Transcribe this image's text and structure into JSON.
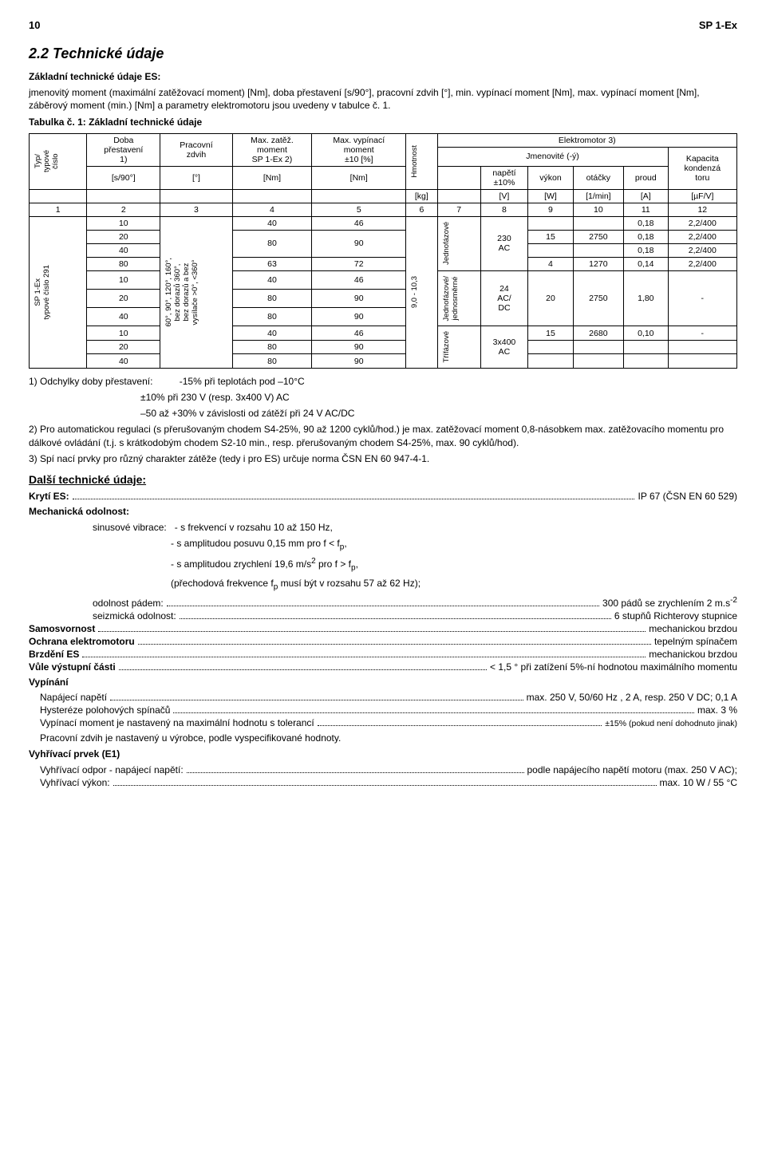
{
  "header": {
    "page_left": "10",
    "page_right": "SP 1-Ex"
  },
  "section": {
    "num_title": "2.2 Technické údaje",
    "subheading": "Základní technické údaje ES:",
    "intro": "jmenovitý moment (maximální zatěžovací moment) [Nm], doba přestavení [s/90°], pracovní zdvih [°], min. vypínací moment [Nm], max. vypínací moment [Nm], záběrový moment (min.) [Nm] a parametry elektromotoru jsou uvedeny v tabulce č. 1.",
    "table_caption": "Tabulka č. 1:  Základní technické údaje"
  },
  "table": {
    "head": {
      "typ": "Typ/\ntypové\nčíslo",
      "doba": "Doba\npřestavení",
      "doba_note": "1)",
      "prac": "Pracovní\nzdvih",
      "maxz": "Max. zatěž.\nmoment\nSP 1-Ex",
      "maxz_note": "2)",
      "maxv": "Max. vypínací\nmoment\n±10 [%]",
      "hmot": "Hmotnost",
      "elektro": "Elektromotor",
      "elektro_note": "3)",
      "jmen": "Jmenovité (-ý)",
      "napeti": "napětí\n±10%",
      "vykon": "výkon",
      "otacky": "otáčky",
      "proud": "proud",
      "kapac": "Kapacita\nkondenzá\ntoru"
    },
    "units": {
      "u1": "[s/90°]",
      "u2": "[°]",
      "u3": "[Nm]",
      "u4": "[Nm]",
      "u5": "[kg]",
      "u6": "[V]",
      "u7": "[W]",
      "u8": "[1/min]",
      "u9": "[A]",
      "u10": "[µF/V]"
    },
    "colnums": [
      "1",
      "2",
      "3",
      "4",
      "5",
      "6",
      "7",
      "8",
      "9",
      "10",
      "11",
      "12"
    ],
    "left_block": {
      "model": "SP 1-Ex\ntypové číslo 291",
      "zdvih": "60°, 90°, 120°, 160°,\nbez dorazů 360°,\nbez dorazů a bez\nvysílače >0°, <360°"
    },
    "mass": "9,0 - 10,3",
    "phase": {
      "jedno": "Jednofázové",
      "jedno_dc": "Jednofázové/\njednosměrné",
      "tri": "Třífázové"
    },
    "volt": {
      "v230": "230\nAC",
      "v24": "24\nAC/\nDC",
      "v3400": "3x400\nAC"
    },
    "rows": [
      {
        "d": "10",
        "mz": "40",
        "mv": "46",
        "w": "",
        "r": "",
        "a": "0,18",
        "c": "2,2/400"
      },
      {
        "d": "20",
        "mz": "80",
        "mv": "90",
        "w": "15",
        "r": "2750",
        "a": "0,18",
        "c": "2,2/400"
      },
      {
        "d": "40",
        "mz": "",
        "mv": "",
        "w": "",
        "r": "",
        "a": "0,18",
        "c": "2,2/400"
      },
      {
        "d": "80",
        "mz": "63",
        "mv": "72",
        "w": "4",
        "r": "1270",
        "a": "0,14",
        "c": "2,2/400"
      },
      {
        "d": "10",
        "mz": "40",
        "mv": "46",
        "w": "",
        "r": "",
        "a": "",
        "c": ""
      },
      {
        "d": "20",
        "mz": "80",
        "mv": "90",
        "w": "20",
        "r": "2750",
        "a": "1,80",
        "c": "-"
      },
      {
        "d": "40",
        "mz": "80",
        "mv": "90",
        "w": "",
        "r": "",
        "a": "",
        "c": ""
      },
      {
        "d": "10",
        "mz": "40",
        "mv": "46",
        "w": "15",
        "r": "2680",
        "a": "0,10",
        "c": "-"
      },
      {
        "d": "20",
        "mz": "80",
        "mv": "90",
        "w": "",
        "r": "",
        "a": "",
        "c": ""
      },
      {
        "d": "40",
        "mz": "80",
        "mv": "90",
        "w": "",
        "r": "",
        "a": "",
        "c": ""
      }
    ]
  },
  "notes": {
    "n1a": "1) Odchylky doby přestavení:",
    "n1b": "-15% při teplotách pod –10°C",
    "n1c": "±10% při 230 V (resp. 3x400 V) AC",
    "n1d": "–50 až +30% v závislosti od zátěží  při 24 V AC/DC",
    "n2": "2) Pro automatickou regulaci (s přerušovaným chodem S4-25%, 90 až 1200 cyklů/hod.) je max. zatěžovací moment  0,8-násobkem max. zatěžovacího momentu pro dálkové ovládání (t.j. s krátkodobým chodem  S2-10 min., resp. přerušovaným chodem S4-25%, max. 90 cyklů/hod).",
    "n3": "3) Spí nací prvky pro různý charakter zátěže (tedy i pro ES) určuje norma ČSN EN 60 947-4-1."
  },
  "further": {
    "title": "Další technické údaje:",
    "kryti_l": "Krytí ES:",
    "kryti_v": "IP 67  (ČSN EN 60 529)",
    "mech_title": "Mechanická odolnost:",
    "sinus_l": "sinusové vibrace:",
    "sinus_a": "- s frekvencí v rozsahu 10 až 150 Hz,",
    "sinus_b": "- s amplitudou posuvu 0,15 mm pro f < f",
    "sinus_b_sub": "p",
    "sinus_b_end": ",",
    "sinus_c": "- s amplitudou zrychlení 19,6 m/s",
    "sinus_c_sup": "2",
    "sinus_c_mid": " pro f > f",
    "sinus_c_sub": "p",
    "sinus_c_end": ",",
    "sinus_d_a": "(přechodová frekvence f",
    "sinus_d_sub": "p",
    "sinus_d_b": " musí být v rozsahu 57 až 62 Hz);",
    "pad_l": "odolnost pádem:",
    "pad_v": "300 pádů se zrychlením 2 m.s",
    "pad_sup": "-2",
    "seiz_l": "seizmická odolnost:",
    "seiz_v": "6 stupňů Richterovy stupnice",
    "samo_l": "Samosvornost",
    "samo_v": "mechanickou brzdou",
    "ochr_l": "Ochrana elektromotoru",
    "ochr_v": "tepelným spínačem",
    "brz_l": "Brzdění ES",
    "brz_v": "mechanickou brzdou",
    "vule_l": "Vůle výstupní části",
    "vule_v": "< 1,5 ° při zatížení 5%-ní hodnotou maximálního momentu",
    "vyp_title": "Vypínání",
    "nap_l": "Napájecí napětí",
    "nap_v": "max. 250 V, 50/60 Hz , 2 A, resp. 250 V DC; 0,1 A",
    "hys_l": "Hysteréze polohových spínačů",
    "hys_v": "max. 3 %",
    "vypm_l": "Vypínací moment je nastavený na maximální hodnotu s tolerancí",
    "vypm_v": "±15% (pokud není dohodnuto jinak)",
    "prac": "Pracovní zdvih je nastavený u výrobce, podle vyspecifikované hodnoty.",
    "vyhp_title": "Vyhřívací prvek (E1)",
    "vyho_l": "Vyhřívací odpor - napájecí napětí:",
    "vyho_v": "podle napájecího napětí motoru (max. 250 V AC);",
    "vyhv_l": "Vyhřívací výkon:",
    "vyhv_v": "max. 10 W / 55 °C"
  }
}
